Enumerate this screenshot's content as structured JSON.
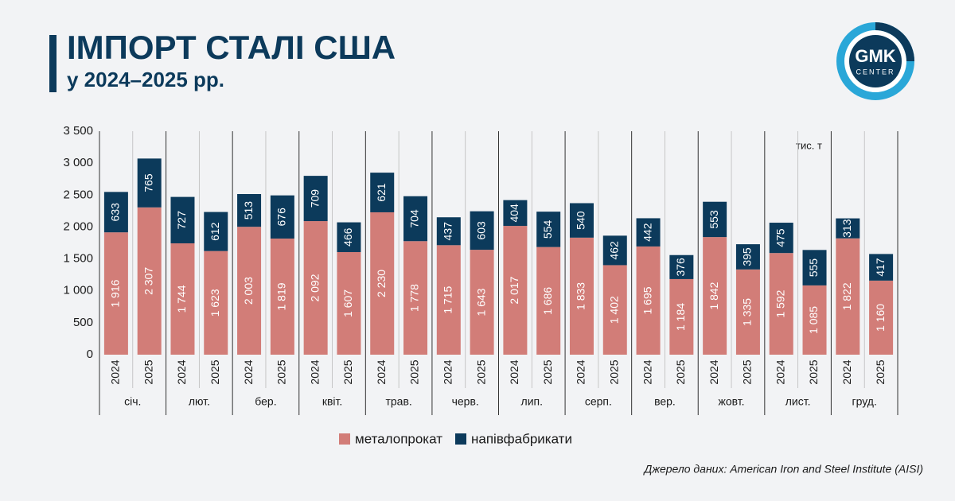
{
  "chart_data": {
    "type": "stacked-bar",
    "title": "ІМПОРТ СТАЛІ США",
    "subtitle": "у 2024–2025 рр.",
    "unit": "тис. т",
    "source": "Джерело даних: American Iron and Steel Institute (AISI)",
    "logo": {
      "top": "GMK",
      "bottom": "CENTER"
    },
    "categories": [
      "2024",
      "2025",
      "2024",
      "2025",
      "2024",
      "2025",
      "2024",
      "2025",
      "2024",
      "2025",
      "2024",
      "2025",
      "2024",
      "2025",
      "2024",
      "2025",
      "2024",
      "2025",
      "2024",
      "2025",
      "2024",
      "2025",
      "2024",
      "2025"
    ],
    "groups": [
      "січ.",
      "лют.",
      "бер.",
      "квіт.",
      "трав.",
      "черв.",
      "лип.",
      "серп.",
      "вер.",
      "жовт.",
      "лист.",
      "груд."
    ],
    "series": [
      {
        "name": "металопрокат",
        "color": "#d27d78",
        "values": [
          1916,
          2307,
          1744,
          1623,
          2003,
          1819,
          2092,
          1607,
          2230,
          1778,
          1715,
          1643,
          2017,
          1686,
          1833,
          1402,
          1695,
          1184,
          1842,
          1335,
          1592,
          1085,
          1822,
          1160
        ],
        "value_labels": [
          "1 916",
          "2 307",
          "1 744",
          "1 623",
          "2 003",
          "1 819",
          "2 092",
          "1 607",
          "2 230",
          "1 778",
          "1 715",
          "1 643",
          "2 017",
          "1 686",
          "1 833",
          "1 402",
          "1 695",
          "1 184",
          "1 842",
          "1 335",
          "1 592",
          "1 085",
          "1 822",
          "1 160"
        ]
      },
      {
        "name": "напівфабрикати",
        "color": "#0c3a5b",
        "values": [
          633,
          765,
          727,
          612,
          513,
          676,
          709,
          466,
          621,
          704,
          437,
          603,
          404,
          554,
          540,
          462,
          442,
          376,
          553,
          395,
          475,
          555,
          313,
          417
        ]
      }
    ],
    "ylim": [
      0,
      3500
    ],
    "yticks": [
      0,
      500,
      {
        "value": 1000,
        "label": "1 000"
      },
      {
        "value": 1500,
        "label": "1 500"
      },
      {
        "value": 2000,
        "label": "2 000"
      },
      {
        "value": 2500,
        "label": "2 500"
      },
      {
        "value": 3000,
        "label": "3 000"
      },
      {
        "value": 3500,
        "label": "3 500"
      }
    ],
    "grid": false,
    "legend": "bottom"
  }
}
